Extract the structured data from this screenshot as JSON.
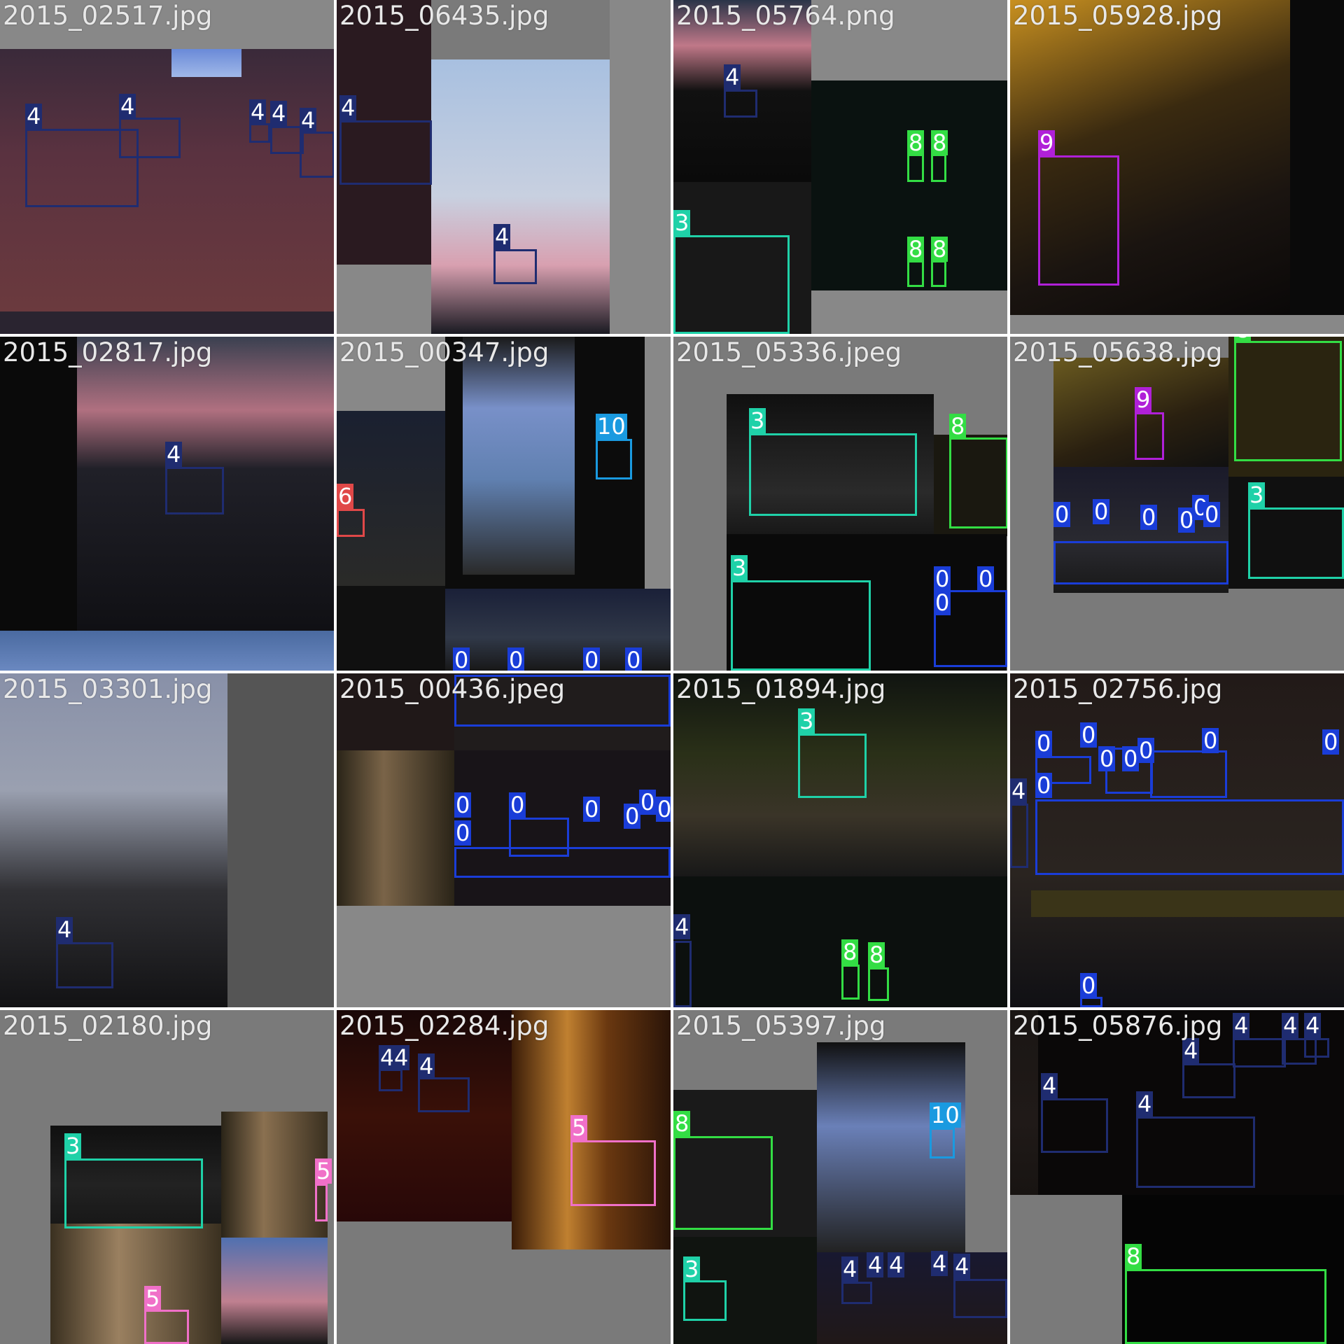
{
  "colors": {
    "0": "#1a3dd8",
    "3": "#1fd1a8",
    "4": "#1f2c70",
    "5": "#f070c8",
    "6": "#e04848",
    "8": "#33dd44",
    "9": "#b020d8",
    "10": "#1a9ae0"
  },
  "tiles": [
    {
      "filename": "2015_02517.jpg",
      "labels": [
        "4",
        "4",
        "4",
        "4",
        "4"
      ]
    },
    {
      "filename": "2015_06435.jpg",
      "labels": [
        "4",
        "4"
      ]
    },
    {
      "filename": "2015_05764.png",
      "labels": [
        "4",
        "8",
        "8",
        "8",
        "8",
        "3"
      ]
    },
    {
      "filename": "2015_05928.jpg",
      "labels": [
        "9"
      ]
    },
    {
      "filename": "2015_02817.jpg",
      "labels": [
        "4"
      ]
    },
    {
      "filename": "2015_00347.jpg",
      "labels": [
        "10",
        "6",
        "0",
        "0",
        "0",
        "0"
      ]
    },
    {
      "filename": "2015_05336.jpeg",
      "labels": [
        "3",
        "8",
        "3",
        "0",
        "0",
        "0"
      ]
    },
    {
      "filename": "2015_05638.jpg",
      "labels": [
        "8",
        "9",
        "3",
        "0",
        "0",
        "0",
        "0",
        "0",
        "0"
      ]
    },
    {
      "filename": "2015_03301.jpg",
      "labels": [
        "4"
      ]
    },
    {
      "filename": "2015_00436.jpeg",
      "labels": [
        "0",
        "0",
        "0",
        "0",
        "0",
        "0",
        "0"
      ]
    },
    {
      "filename": "2015_01894.jpg",
      "labels": [
        "3",
        "4",
        "8",
        "8"
      ]
    },
    {
      "filename": "2015_02756.jpg",
      "labels": [
        "0",
        "0",
        "0",
        "0",
        "0",
        "0",
        "0",
        "4",
        "0",
        "0"
      ]
    },
    {
      "filename": "2015_02180.jpg",
      "labels": [
        "3",
        "5",
        "5"
      ]
    },
    {
      "filename": "2015_02284.jpg",
      "labels": [
        "4",
        "4",
        "4",
        "5"
      ]
    },
    {
      "filename": "2015_05397.jpg",
      "labels": [
        "8",
        "10",
        "3",
        "4",
        "4",
        "4",
        "4",
        "4"
      ]
    },
    {
      "filename": "2015_05876.jpg",
      "labels": [
        "4",
        "4",
        "4",
        "4",
        "4",
        "4",
        "8"
      ]
    }
  ]
}
